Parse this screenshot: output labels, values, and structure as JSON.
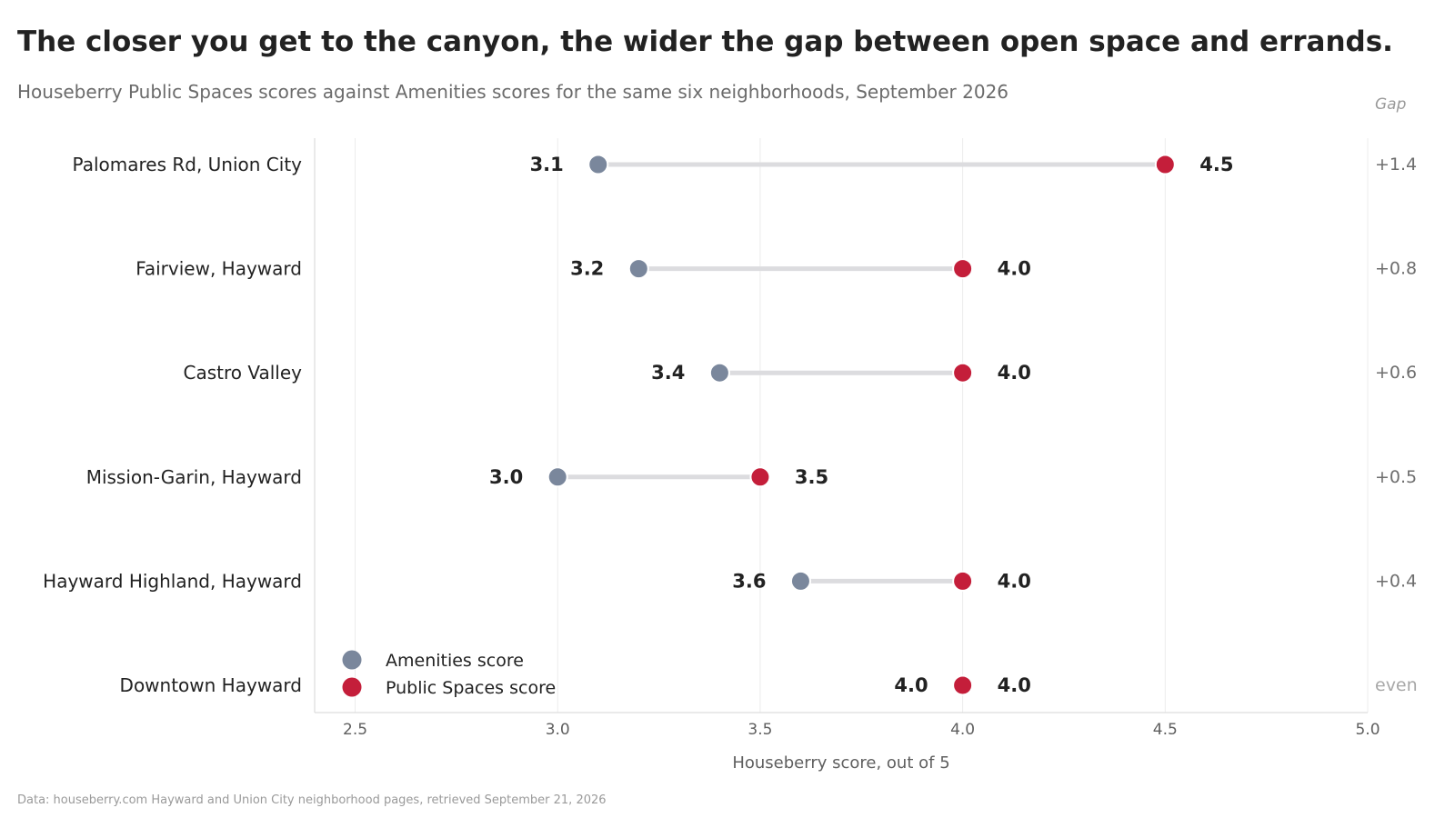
{
  "title": "The closer you get to the canyon, the wider the gap between open space and errands.",
  "subtitle": "Houseberry Public Spaces scores against Amenities scores for the same six neighborhoods, September 2026",
  "source": "Data: houseberry.com Hayward and Union City neighborhood pages, retrieved September 21, 2026",
  "chart_data": {
    "type": "dumbbell",
    "xlabel": "Houseberry score, out of 5",
    "xlim": [
      2.4,
      5.0
    ],
    "xticks": [
      "2.5",
      "3.0",
      "3.5",
      "4.0",
      "4.5",
      "5.0"
    ],
    "grid": "vertical",
    "legend_position": "bottom-left",
    "gap_header": "Gap",
    "colors": {
      "amenities": "#7a879c",
      "public_spaces": "#c41e3a",
      "connector": "#dcdcdf"
    },
    "series": [
      {
        "name": "Amenities score",
        "key": "amenities"
      },
      {
        "name": "Public Spaces score",
        "key": "public_spaces"
      }
    ],
    "rows": [
      {
        "label": "Palomares Rd, Union City",
        "amenities": 3.1,
        "public_spaces": 4.5,
        "amenities_label": "3.1",
        "public_spaces_label": "4.5",
        "gap": "+1.4"
      },
      {
        "label": "Fairview, Hayward",
        "amenities": 3.2,
        "public_spaces": 4.0,
        "amenities_label": "3.2",
        "public_spaces_label": "4.0",
        "gap": "+0.8"
      },
      {
        "label": "Castro Valley",
        "amenities": 3.4,
        "public_spaces": 4.0,
        "amenities_label": "3.4",
        "public_spaces_label": "4.0",
        "gap": "+0.6"
      },
      {
        "label": "Mission-Garin, Hayward",
        "amenities": 3.0,
        "public_spaces": 3.5,
        "amenities_label": "3.0",
        "public_spaces_label": "3.5",
        "gap": "+0.5"
      },
      {
        "label": "Hayward Highland, Hayward",
        "amenities": 3.6,
        "public_spaces": 4.0,
        "amenities_label": "3.6",
        "public_spaces_label": "4.0",
        "gap": "+0.4"
      },
      {
        "label": "Downtown Hayward",
        "amenities": 4.0,
        "public_spaces": 4.0,
        "amenities_label": "4.0",
        "public_spaces_label": "4.0",
        "gap": "even"
      }
    ]
  }
}
